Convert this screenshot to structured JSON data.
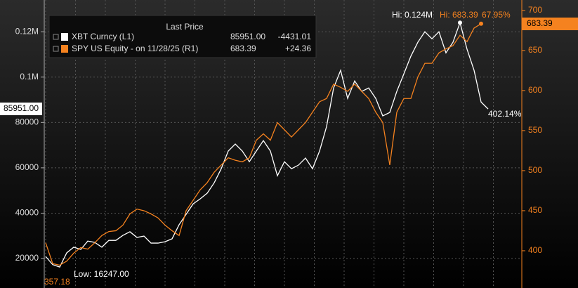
{
  "chart_data": {
    "type": "line",
    "legend_title": "Last Price",
    "series": [
      {
        "name": "XBT Curncy  (L1)",
        "color": "#ffffff",
        "axis": "y",
        "last": "85951.00",
        "change": "-4431.01",
        "values": [
          20900,
          17300,
          16247,
          22500,
          25000,
          24000,
          27700,
          27100,
          25000,
          28000,
          28000,
          30200,
          31800,
          29300,
          29900,
          26800,
          26800,
          27400,
          28700,
          34900,
          39500,
          44100,
          46300,
          48800,
          53400,
          59600,
          67400,
          70500,
          67400,
          62700,
          67400,
          72000,
          67400,
          56500,
          62700,
          59600,
          61200,
          64300,
          59600,
          67400,
          78200,
          95200,
          103000,
          90600,
          98300,
          93700,
          95200,
          90600,
          82900,
          84400,
          93700,
          101400,
          109200,
          115400,
          120000,
          116900,
          120000,
          110700,
          115400,
          124000,
          112300,
          103000,
          89000,
          85951
        ]
      },
      {
        "name": "SPY US Equity -  on 11/28/25  (R1)",
        "color": "#f5821f",
        "axis": "y2",
        "last": "683.39",
        "change": "+24.36",
        "values": [
          410,
          384,
          382,
          387,
          397,
          404,
          402,
          410,
          419,
          424,
          425,
          432,
          446,
          452,
          450,
          446,
          441,
          432,
          425,
          419,
          450,
          463,
          476,
          485,
          498,
          507,
          516,
          513,
          511,
          516,
          538,
          546,
          538,
          560,
          551,
          542,
          551,
          560,
          573,
          586,
          590,
          608,
          604,
          599,
          608,
          599,
          590,
          573,
          560,
          507,
          573,
          590,
          590,
          617,
          634,
          634,
          647,
          652,
          656,
          669,
          661,
          678,
          683.39,
          null
        ]
      }
    ],
    "ylim": [
      7000,
      134000
    ],
    "yticks": [
      20000,
      40000,
      60000,
      80000,
      {
        "value": 100000,
        "label": "0.1M"
      },
      {
        "value": 120000,
        "label": "0.12M"
      }
    ],
    "y2lim": [
      353.5,
      713
    ],
    "y2ticks": [
      400,
      450,
      500,
      550,
      600,
      650,
      700
    ],
    "grid": true,
    "annotations": {
      "xbt_high": "Hi: 0.124M",
      "spy_high": "Hi: 683.39",
      "spy_pct": "67.95%",
      "xbt_pct": "402.14%",
      "xbt_low": "Low: 16247.00",
      "spy_low": "357.18",
      "xbt_tag": "85951.00",
      "spy_tag": "683.39"
    }
  }
}
